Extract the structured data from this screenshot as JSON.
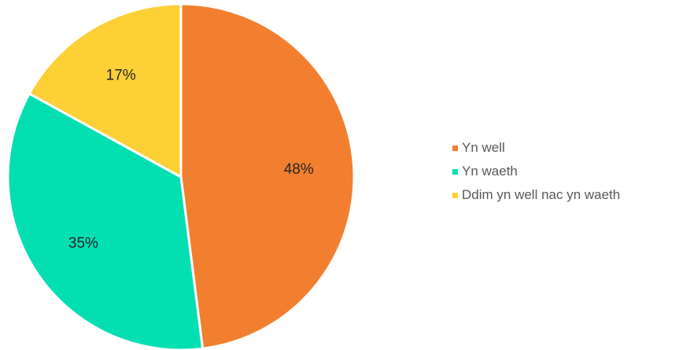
{
  "chart_data": {
    "type": "pie",
    "title": "",
    "slices": [
      {
        "label": "Yn well",
        "value": 48,
        "value_label": "48%",
        "color": "#F27F30"
      },
      {
        "label": "Yn waeth",
        "value": 35,
        "value_label": "35%",
        "color": "#04DFB2"
      },
      {
        "label": "Ddim yn well nac yn waeth",
        "value": 17,
        "value_label": "17%",
        "color": "#FDD036"
      }
    ],
    "legend_position": "right"
  }
}
